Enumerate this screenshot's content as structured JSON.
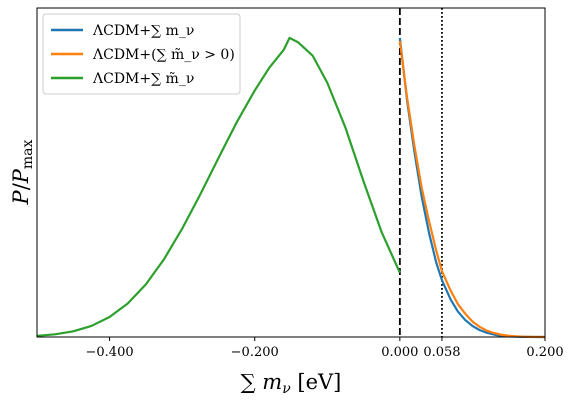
{
  "chart_data": {
    "type": "line",
    "xlabel": "∑ m_ν [eV]",
    "ylabel": "P/P_max",
    "xlim": [
      -0.5,
      0.2
    ],
    "ylim": [
      0,
      1.1
    ],
    "xticks": [
      {
        "value": -0.4,
        "label": "−0.400"
      },
      {
        "value": -0.2,
        "label": "−0.200"
      },
      {
        "value": 0.0,
        "label": "0.000"
      },
      {
        "value": 0.058,
        "label": "0.058"
      },
      {
        "value": 0.2,
        "label": "0.200"
      }
    ],
    "yticks": [],
    "grid": false,
    "legend_position": "top-left",
    "vlines": [
      {
        "x": 0.0,
        "style": "dashed",
        "color": "#000000"
      },
      {
        "x": 0.058,
        "style": "dotted",
        "color": "#000000"
      }
    ],
    "series": [
      {
        "name": "ΛCDM+∑ m_ν",
        "color": "#1f77b4",
        "x": [
          0.0,
          0.01,
          0.02,
          0.03,
          0.04,
          0.05,
          0.058,
          0.07,
          0.08,
          0.09,
          0.1,
          0.11,
          0.12,
          0.13,
          0.14,
          0.15,
          0.16,
          0.17,
          0.18,
          0.19,
          0.2
        ],
        "y": [
          1.0,
          0.79,
          0.62,
          0.47,
          0.35,
          0.25,
          0.19,
          0.125,
          0.085,
          0.057,
          0.037,
          0.023,
          0.014,
          0.008,
          0.004,
          0.0022,
          0.0011,
          0.0005,
          0.0002,
          0.0001,
          0.0
        ]
      },
      {
        "name": "ΛCDM+(∑ m̃_ν > 0)",
        "color": "#ff7f0e",
        "x": [
          0.0,
          0.01,
          0.02,
          0.03,
          0.04,
          0.05,
          0.058,
          0.07,
          0.08,
          0.09,
          0.1,
          0.11,
          0.12,
          0.13,
          0.14,
          0.15,
          0.16,
          0.17,
          0.18,
          0.19,
          0.2
        ],
        "y": [
          0.99,
          0.8,
          0.64,
          0.5,
          0.39,
          0.29,
          0.22,
          0.155,
          0.11,
          0.078,
          0.052,
          0.034,
          0.021,
          0.013,
          0.0075,
          0.0042,
          0.0022,
          0.001,
          0.0004,
          0.00015,
          0.0
        ]
      },
      {
        "name": "ΛCDM+∑ m̃_ν",
        "color": "#2ca02c",
        "x": [
          -0.5,
          -0.475,
          -0.45,
          -0.425,
          -0.4,
          -0.375,
          -0.35,
          -0.325,
          -0.3,
          -0.275,
          -0.25,
          -0.225,
          -0.2,
          -0.18,
          -0.16,
          -0.152,
          -0.14,
          -0.12,
          -0.1,
          -0.075,
          -0.05,
          -0.025,
          0.0
        ],
        "y": [
          0.004,
          0.009,
          0.019,
          0.037,
          0.067,
          0.112,
          0.176,
          0.26,
          0.362,
          0.477,
          0.598,
          0.717,
          0.824,
          0.9,
          0.96,
          1.0,
          0.985,
          0.94,
          0.85,
          0.7,
          0.52,
          0.35,
          0.215
        ]
      }
    ]
  }
}
